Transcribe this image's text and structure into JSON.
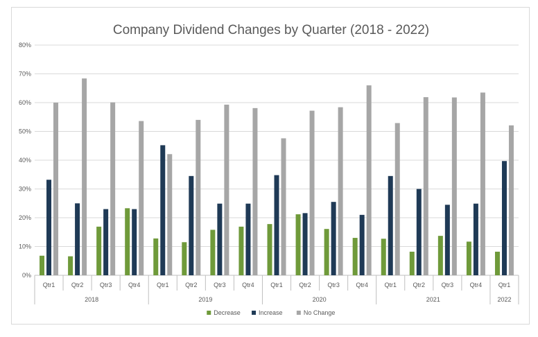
{
  "chart_data": {
    "type": "bar",
    "title": "Company Dividend Changes by Quarter (2018 - 2022)",
    "xlabel": "",
    "ylabel": "",
    "ylim": [
      0,
      80
    ],
    "y_ticks": [
      "0%",
      "10%",
      "20%",
      "30%",
      "40%",
      "50%",
      "60%",
      "70%",
      "80%"
    ],
    "grid": true,
    "legend_position": "bottom",
    "categories": [
      "Qtr1",
      "Qtr2",
      "Qtr3",
      "Qtr4",
      "Qtr1",
      "Qtr2",
      "Qtr3",
      "Qtr4",
      "Qtr1",
      "Qtr2",
      "Qtr3",
      "Qtr4",
      "Qtr1",
      "Qtr2",
      "Qtr3",
      "Qtr4",
      "Qtr1"
    ],
    "groups": [
      {
        "label": "2018",
        "count": 4
      },
      {
        "label": "2019",
        "count": 4
      },
      {
        "label": "2020",
        "count": 4
      },
      {
        "label": "2021",
        "count": 4
      },
      {
        "label": "2022",
        "count": 1
      }
    ],
    "series": [
      {
        "name": "Decrease",
        "color": "#6f9a3a",
        "values": [
          6.8,
          6.6,
          16.9,
          23.3,
          12.8,
          11.5,
          15.8,
          16.9,
          17.8,
          21.2,
          16.1,
          13.0,
          12.7,
          8.2,
          13.7,
          11.7,
          8.2
        ]
      },
      {
        "name": "Increase",
        "color": "#1f3a56",
        "values": [
          33.2,
          25.0,
          23.0,
          23.0,
          45.2,
          34.5,
          24.9,
          24.9,
          34.8,
          21.6,
          25.5,
          21.0,
          34.5,
          30.0,
          24.5,
          24.9,
          39.7
        ]
      },
      {
        "name": "No Change",
        "color": "#a6a6a6",
        "values": [
          60.0,
          68.4,
          60.1,
          53.6,
          42.1,
          54.0,
          59.3,
          58.1,
          47.6,
          57.2,
          58.4,
          66.0,
          52.9,
          61.9,
          61.8,
          63.5,
          52.1
        ]
      }
    ]
  }
}
